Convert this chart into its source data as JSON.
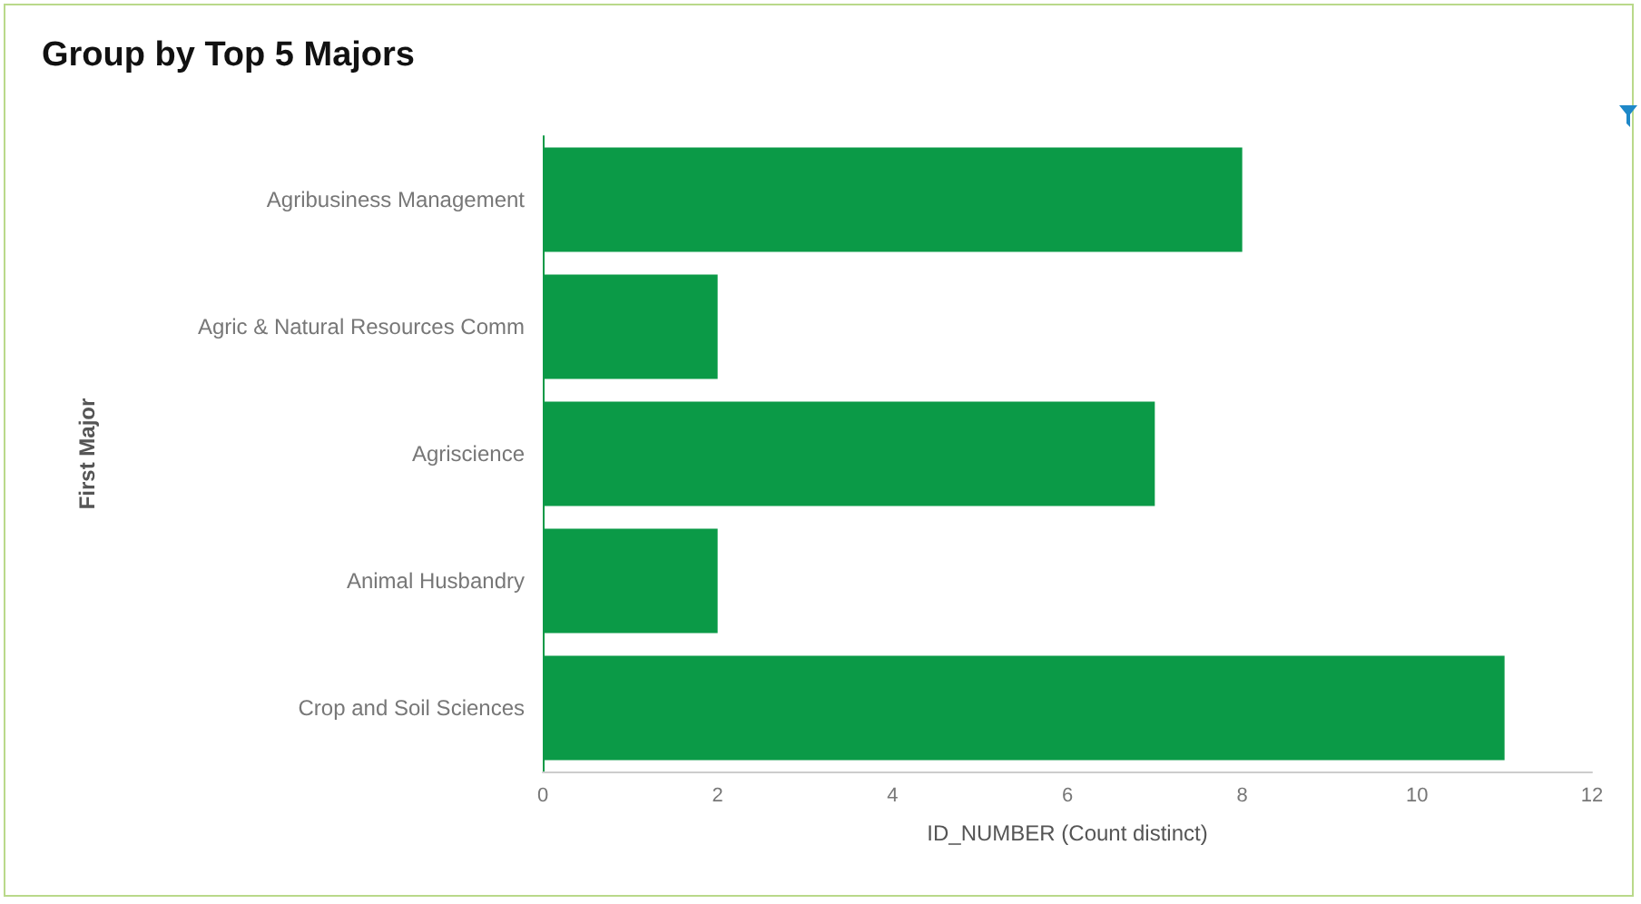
{
  "chart_data": {
    "type": "bar",
    "orientation": "horizontal",
    "title": "Group by Top 5 Majors",
    "xlabel": "ID_NUMBER (Count distinct)",
    "ylabel": "First Major",
    "categories": [
      "Agribusiness Management",
      "Agric & Natural Resources Comm",
      "Agriscience",
      "Animal Husbandry",
      "Crop and Soil Sciences"
    ],
    "values": [
      8,
      2,
      7,
      2,
      11
    ],
    "color": "#0b9a47",
    "xlim": [
      0,
      12
    ],
    "xticks": [
      0,
      2,
      4,
      6,
      8,
      10,
      12
    ],
    "grid": false
  }
}
